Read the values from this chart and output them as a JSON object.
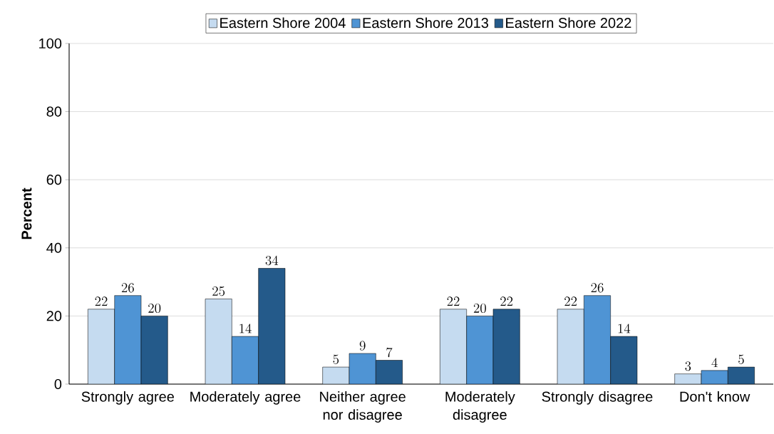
{
  "chart_data": {
    "type": "bar",
    "ylabel": "Percent",
    "categories": [
      "Strongly agree",
      "Moderately agree",
      "Neither agree nor disagree",
      "Moderately disagree",
      "Strongly disagree",
      "Don't know"
    ],
    "series": [
      {
        "name": "Eastern Shore 2004",
        "color": "#c5dbf0",
        "values": [
          22,
          25,
          5,
          22,
          22,
          3
        ]
      },
      {
        "name": "Eastern Shore 2013",
        "color": "#4f94d4",
        "values": [
          26,
          14,
          9,
          20,
          26,
          4
        ]
      },
      {
        "name": "Eastern Shore 2022",
        "color": "#245a8a",
        "values": [
          20,
          34,
          7,
          22,
          14,
          5
        ]
      }
    ],
    "ylim": [
      0,
      100
    ],
    "yticks": [
      0,
      20,
      40,
      60,
      80,
      100
    ],
    "grid": "y",
    "legend": "top",
    "data_labels": true
  }
}
